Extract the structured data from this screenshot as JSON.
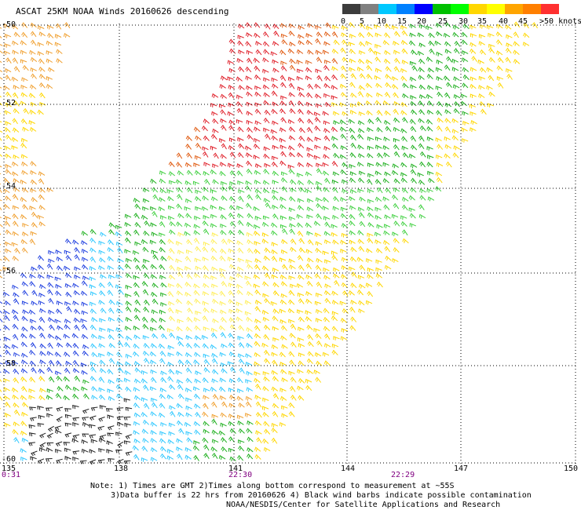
{
  "title": "ASCAT 25KM NOAA Winds 20160626 descending",
  "scale": {
    "colors": [
      "#3c3c3c",
      "#808080",
      "#00c8ff",
      "#0080ff",
      "#0000ff",
      "#00c000",
      "#00ff00",
      "#ffd700",
      "#ffff00",
      "#ffa500",
      "#ff7f00",
      "#ff3030",
      "#c80000",
      "#8b4513",
      "#b0b0b0",
      "#ff00ff",
      "#a000ff",
      "#6000a0"
    ],
    "labels": [
      "0",
      "5",
      "10",
      "15",
      "20",
      "25",
      "30",
      "35",
      "40",
      "45",
      ">50 knots"
    ]
  },
  "map": {
    "lon_labels": [
      "135",
      "138",
      "141",
      "144",
      "147",
      "150"
    ],
    "lat_labels": [
      "-50",
      "-52",
      "-54",
      "-56",
      "-58",
      "-60"
    ],
    "times": [
      "0:31",
      "22:30",
      "22:29"
    ]
  },
  "notes": [
    "Note: 1) Times are GMT 2)Times along bottom correspond to measurement at ~55S",
    "3)Data buffer is 22 hrs from 20160626 4) Black wind barbs indicate possible contamination",
    "NOAA/NESDIS/Center for Satellite Applications and Research"
  ]
}
